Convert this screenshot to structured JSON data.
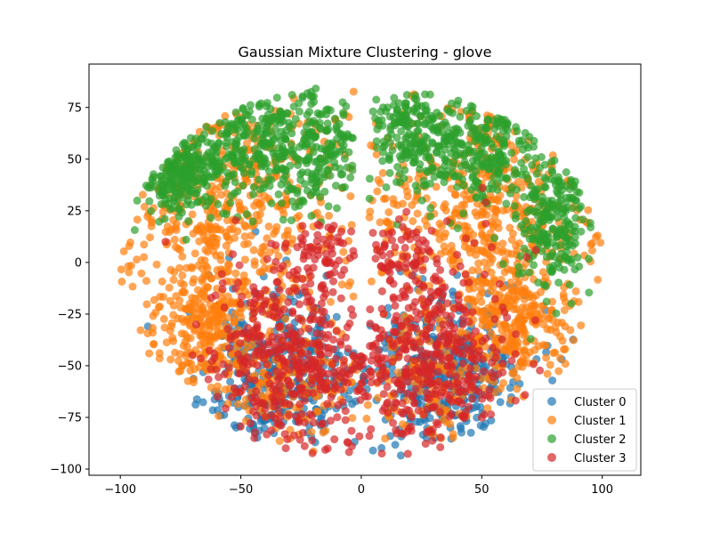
{
  "chart_data": {
    "type": "scatter",
    "title": "Gaussian Mixture Clustering - glove",
    "xlabel": "",
    "ylabel": "",
    "xlim": [
      -113,
      116
    ],
    "ylim": [
      -103,
      96
    ],
    "xticks": [
      -100,
      -50,
      0,
      50,
      100
    ],
    "yticks": [
      -100,
      -75,
      -50,
      -25,
      0,
      25,
      50,
      75
    ],
    "legend_position": "lower right",
    "marker_alpha": 0.7,
    "series": [
      {
        "name": "Cluster 0",
        "color": "#1f77b4",
        "regions": [
          {
            "cx": -35,
            "cy": -55,
            "rx": 30,
            "ry": 35,
            "weight": 380
          },
          {
            "cx": 35,
            "cy": -55,
            "rx": 30,
            "ry": 35,
            "weight": 380
          }
        ]
      },
      {
        "name": "Cluster 1",
        "color": "#ff7f0e",
        "regions": [
          {
            "cx": -55,
            "cy": 25,
            "rx": 45,
            "ry": 55,
            "weight": 500
          },
          {
            "cx": 55,
            "cy": 25,
            "rx": 45,
            "ry": 55,
            "weight": 500
          },
          {
            "cx": -65,
            "cy": -30,
            "rx": 20,
            "ry": 25,
            "weight": 220
          },
          {
            "cx": 65,
            "cy": -30,
            "rx": 20,
            "ry": 25,
            "weight": 220
          },
          {
            "cx": -30,
            "cy": -55,
            "rx": 25,
            "ry": 30,
            "weight": 150
          },
          {
            "cx": 30,
            "cy": -55,
            "rx": 25,
            "ry": 30,
            "weight": 150
          }
        ]
      },
      {
        "name": "Cluster 2",
        "color": "#2ca02c",
        "regions": [
          {
            "cx": -75,
            "cy": 45,
            "rx": 15,
            "ry": 20,
            "weight": 220
          },
          {
            "cx": -45,
            "cy": 55,
            "rx": 25,
            "ry": 25,
            "weight": 260
          },
          {
            "cx": -15,
            "cy": 55,
            "rx": 15,
            "ry": 30,
            "weight": 160
          },
          {
            "cx": 18,
            "cy": 60,
            "rx": 15,
            "ry": 25,
            "weight": 160
          },
          {
            "cx": 50,
            "cy": 55,
            "rx": 25,
            "ry": 25,
            "weight": 260
          },
          {
            "cx": 80,
            "cy": 20,
            "rx": 15,
            "ry": 30,
            "weight": 220
          }
        ]
      },
      {
        "name": "Cluster 3",
        "color": "#d62728",
        "regions": [
          {
            "cx": -30,
            "cy": -45,
            "rx": 30,
            "ry": 45,
            "weight": 420
          },
          {
            "cx": 30,
            "cy": -45,
            "rx": 30,
            "ry": 45,
            "weight": 420
          },
          {
            "cx": -15,
            "cy": 5,
            "rx": 12,
            "ry": 15,
            "weight": 60
          },
          {
            "cx": 15,
            "cy": 5,
            "rx": 12,
            "ry": 15,
            "weight": 60
          }
        ]
      }
    ]
  }
}
